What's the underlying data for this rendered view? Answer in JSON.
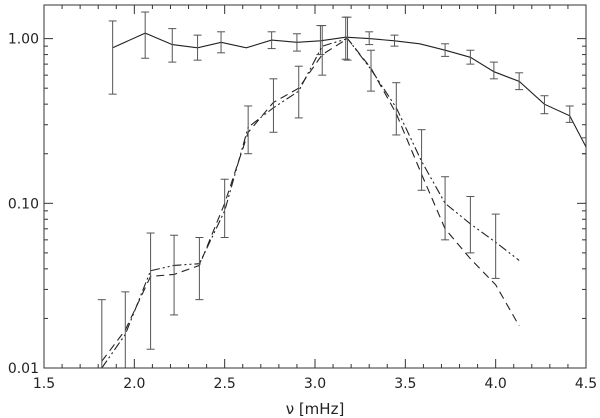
{
  "chart_data": {
    "type": "line",
    "title": "",
    "xlabel": "ν [mHz]",
    "ylabel": "",
    "xlim": [
      1.5,
      4.5
    ],
    "ylim": [
      0.01,
      1.6
    ],
    "yscale": "log",
    "grid": false,
    "legend": "none",
    "x_ticks": [
      1.5,
      2.0,
      2.5,
      3.0,
      3.5,
      4.0,
      4.5
    ],
    "x_tick_labels": [
      "1.5",
      "2.0",
      "2.5",
      "3.0",
      "3.5",
      "4.0",
      "4.5"
    ],
    "y_ticks": [
      0.01,
      0.1,
      1.0
    ],
    "y_tick_labels": [
      "0.01",
      "0.10",
      "1.00"
    ],
    "series": [
      {
        "style": "solid",
        "x": [
          1.88,
          2.06,
          2.21,
          2.35,
          2.48,
          2.62,
          2.76,
          2.9,
          3.03,
          3.17,
          3.3,
          3.44,
          3.58,
          3.72,
          3.86,
          3.99,
          4.13,
          4.27,
          4.41,
          4.5
        ],
        "y": [
          0.88,
          1.08,
          0.92,
          0.88,
          0.95,
          0.88,
          0.98,
          0.95,
          0.97,
          1.02,
          1.0,
          0.97,
          0.93,
          0.85,
          0.77,
          0.63,
          0.55,
          0.4,
          0.34,
          0.22
        ],
        "err_low": [
          0.46,
          0.76,
          0.72,
          0.74,
          0.82,
          null,
          0.87,
          0.84,
          0.8,
          0.75,
          0.92,
          0.9,
          null,
          0.78,
          0.7,
          0.57,
          0.49,
          0.35,
          0.31,
          0.2
        ],
        "err_high": [
          1.28,
          1.45,
          1.15,
          1.05,
          1.1,
          null,
          1.1,
          1.07,
          1.2,
          1.35,
          1.1,
          1.05,
          null,
          0.93,
          0.85,
          0.72,
          0.62,
          0.45,
          0.39,
          0.25
        ]
      },
      {
        "style": "dashed",
        "x": [
          1.82,
          1.95,
          2.09,
          2.22,
          2.36,
          2.5,
          2.63,
          2.77,
          2.91,
          3.04,
          3.18,
          3.31,
          3.45,
          3.59,
          3.72,
          3.86,
          4.0,
          4.13
        ],
        "y": [
          0.011,
          0.017,
          0.036,
          0.037,
          0.042,
          0.1,
          0.27,
          0.41,
          0.5,
          0.8,
          1.0,
          0.66,
          0.35,
          0.15,
          0.07,
          0.046,
          0.032,
          0.018
        ]
      },
      {
        "style": "dash-dot",
        "x": [
          1.82,
          1.95,
          2.09,
          2.22,
          2.36,
          2.5,
          2.63,
          2.77,
          2.91,
          3.04,
          3.18,
          3.31,
          3.45,
          3.59,
          3.72,
          3.86,
          4.0,
          4.13
        ],
        "y": [
          0.01,
          0.016,
          0.039,
          0.042,
          0.043,
          0.09,
          0.29,
          0.38,
          0.48,
          0.9,
          1.0,
          0.65,
          0.38,
          0.18,
          0.1,
          0.075,
          0.058,
          0.045
        ],
        "err_low": [
          0.0095,
          0.0095,
          0.013,
          0.021,
          0.026,
          0.062,
          0.2,
          0.27,
          0.33,
          0.6,
          0.74,
          0.48,
          0.26,
          0.12,
          0.06,
          0.05,
          0.035,
          null
        ],
        "err_high": [
          0.026,
          0.029,
          0.066,
          0.064,
          0.062,
          0.14,
          0.39,
          0.57,
          0.68,
          1.2,
          1.35,
          0.85,
          0.54,
          0.28,
          0.145,
          0.11,
          0.086,
          null
        ]
      }
    ]
  }
}
